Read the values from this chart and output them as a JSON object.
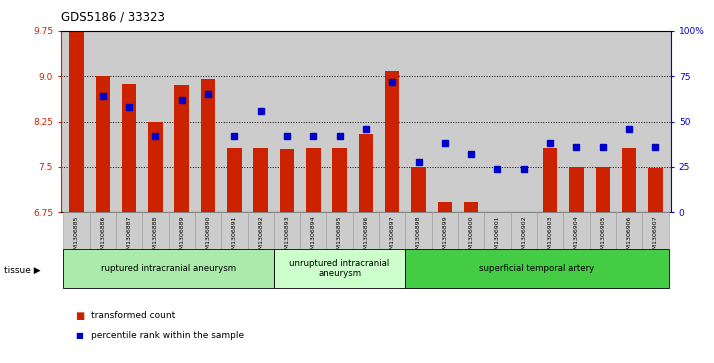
{
  "title": "GDS5186 / 33323",
  "samples": [
    "GSM1306885",
    "GSM1306886",
    "GSM1306887",
    "GSM1306888",
    "GSM1306889",
    "GSM1306890",
    "GSM1306891",
    "GSM1306892",
    "GSM1306893",
    "GSM1306894",
    "GSM1306895",
    "GSM1306896",
    "GSM1306897",
    "GSM1306898",
    "GSM1306899",
    "GSM1306900",
    "GSM1306901",
    "GSM1306902",
    "GSM1306903",
    "GSM1306904",
    "GSM1306905",
    "GSM1306906",
    "GSM1306907"
  ],
  "transformed_count": [
    9.75,
    9.0,
    8.87,
    8.25,
    8.85,
    8.95,
    7.82,
    7.82,
    7.8,
    7.82,
    7.82,
    8.05,
    9.08,
    7.5,
    6.92,
    6.92,
    6.65,
    6.65,
    7.82,
    7.5,
    7.5,
    7.82,
    7.48
  ],
  "percentile_rank": [
    null,
    64,
    58,
    42,
    62,
    65,
    42,
    56,
    42,
    42,
    42,
    46,
    72,
    28,
    38,
    32,
    24,
    24,
    38,
    36,
    36,
    46,
    36
  ],
  "ylim_left": [
    6.75,
    9.75
  ],
  "ylim_right": [
    0,
    100
  ],
  "yticks_left": [
    6.75,
    7.5,
    8.25,
    9.0,
    9.75
  ],
  "yticks_right": [
    0,
    25,
    50,
    75,
    100
  ],
  "ytick_labels_right": [
    "0",
    "25",
    "50",
    "75",
    "100%"
  ],
  "groups": [
    {
      "label": "ruptured intracranial aneurysm",
      "start": 0,
      "end": 8,
      "color": "#AAEAAA"
    },
    {
      "label": "unruptured intracranial\naneurysm",
      "start": 8,
      "end": 13,
      "color": "#CCFFCC"
    },
    {
      "label": "superficial temporal artery",
      "start": 13,
      "end": 23,
      "color": "#44CC44"
    }
  ],
  "bar_color": "#CC2200",
  "dot_color": "#0000CC",
  "bar_bottom": 6.75,
  "plot_bg": "#CCCCCC",
  "tick_bg": "#CCCCCC",
  "left_axis_color": "#CC2200",
  "right_axis_color": "#0000CC",
  "n_samples": 23
}
